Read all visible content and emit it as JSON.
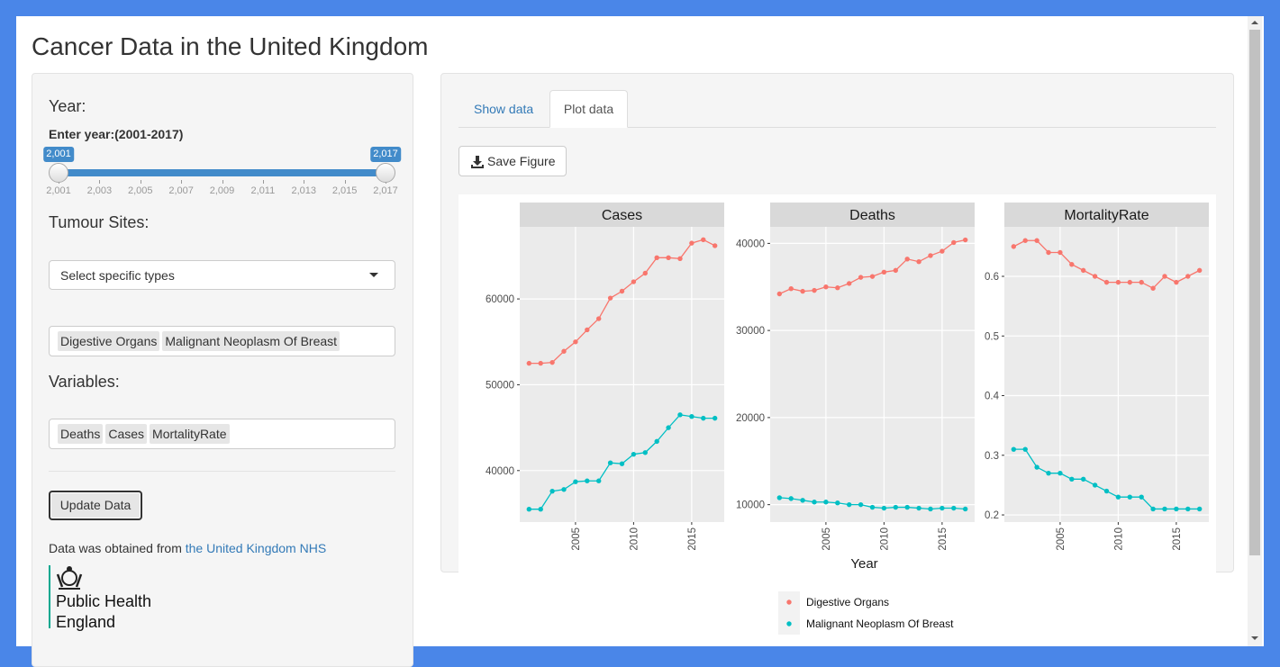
{
  "header": {
    "title": "Cancer Data in the United Kingdom"
  },
  "sidebar": {
    "year_heading": "Year:",
    "year_input_label": "Enter year:(2001-2017)",
    "slider": {
      "from": "2,001",
      "to": "2,017",
      "grid": [
        "2,001",
        "2,003",
        "2,005",
        "2,007",
        "2,009",
        "2,011",
        "2,013",
        "2,015",
        "2,017"
      ]
    },
    "tumour_heading": "Tumour Sites:",
    "tumour_placeholder": "Select specific types",
    "tumour_selected": [
      "Digestive Organs",
      "Malignant Neoplasm Of Breast"
    ],
    "variables_heading": "Variables:",
    "variables_selected": [
      "Deaths",
      "Cases",
      "MortalityRate"
    ],
    "update_button": "Update Data",
    "source_text": "Data was obtained from",
    "source_link": "the United Kingdom NHS",
    "logo": [
      "Public Health",
      "England"
    ]
  },
  "tabs": [
    "Show data",
    "Plot data"
  ],
  "save_button": "Save Figure",
  "chart_data": [
    {
      "type": "line",
      "title": "Cases",
      "x": [
        2001,
        2002,
        2003,
        2004,
        2005,
        2006,
        2007,
        2008,
        2009,
        2010,
        2011,
        2012,
        2013,
        2014,
        2015,
        2016,
        2017
      ],
      "series": [
        {
          "name": "Digestive Organs",
          "color": "#F8766D",
          "values": [
            52500,
            52500,
            52600,
            53900,
            55000,
            56400,
            57700,
            60100,
            60900,
            62000,
            63000,
            64800,
            64800,
            64700,
            66500,
            66900,
            66200
          ]
        },
        {
          "name": "Malignant Neoplasm Of Breast",
          "color": "#00BFC4",
          "values": [
            35500,
            35500,
            37600,
            37800,
            38700,
            38800,
            38800,
            40900,
            40800,
            41900,
            42100,
            43400,
            45000,
            46500,
            46300,
            46100,
            46100
          ]
        }
      ],
      "xlim": [
        2000.2,
        2017.8
      ],
      "xticks": [
        2005,
        2010,
        2015
      ],
      "ylim": [
        34000,
        68400
      ],
      "yticks": [
        40000,
        50000,
        60000
      ]
    },
    {
      "type": "line",
      "title": "Deaths",
      "x_label": "Year",
      "x": [
        2001,
        2002,
        2003,
        2004,
        2005,
        2006,
        2007,
        2008,
        2009,
        2010,
        2011,
        2012,
        2013,
        2014,
        2015,
        2016,
        2017
      ],
      "series": [
        {
          "color": "#F8766D",
          "values": [
            34200,
            34800,
            34500,
            34600,
            35000,
            34900,
            35400,
            36100,
            36200,
            36700,
            36900,
            38200,
            37900,
            38600,
            39100,
            40100,
            40400
          ]
        },
        {
          "color": "#00BFC4",
          "values": [
            10800,
            10700,
            10500,
            10300,
            10300,
            10200,
            10000,
            10000,
            9700,
            9600,
            9700,
            9700,
            9600,
            9500,
            9600,
            9600,
            9500
          ]
        }
      ],
      "xlim": [
        2000.2,
        2017.8
      ],
      "xticks": [
        2005,
        2010,
        2015
      ],
      "ylim": [
        8000,
        41900
      ],
      "yticks": [
        10000,
        20000,
        30000,
        40000
      ]
    },
    {
      "type": "line",
      "title": "MortalityRate",
      "x": [
        2001,
        2002,
        2003,
        2004,
        2005,
        2006,
        2007,
        2008,
        2009,
        2010,
        2011,
        2012,
        2013,
        2014,
        2015,
        2016,
        2017
      ],
      "series": [
        {
          "color": "#F8766D",
          "values": [
            0.65,
            0.66,
            0.66,
            0.64,
            0.64,
            0.62,
            0.61,
            0.6,
            0.59,
            0.59,
            0.59,
            0.59,
            0.58,
            0.6,
            0.59,
            0.6,
            0.61
          ]
        },
        {
          "color": "#00BFC4",
          "values": [
            0.31,
            0.31,
            0.28,
            0.27,
            0.27,
            0.26,
            0.26,
            0.25,
            0.24,
            0.23,
            0.23,
            0.23,
            0.21,
            0.21,
            0.21,
            0.21,
            0.21
          ]
        }
      ],
      "xlim": [
        2000.2,
        2017.8
      ],
      "xticks": [
        2005,
        2010,
        2015
      ],
      "ylim": [
        0.188,
        0.683
      ],
      "yticks": [
        0.2,
        0.3,
        0.4,
        0.5,
        0.6
      ]
    }
  ]
}
